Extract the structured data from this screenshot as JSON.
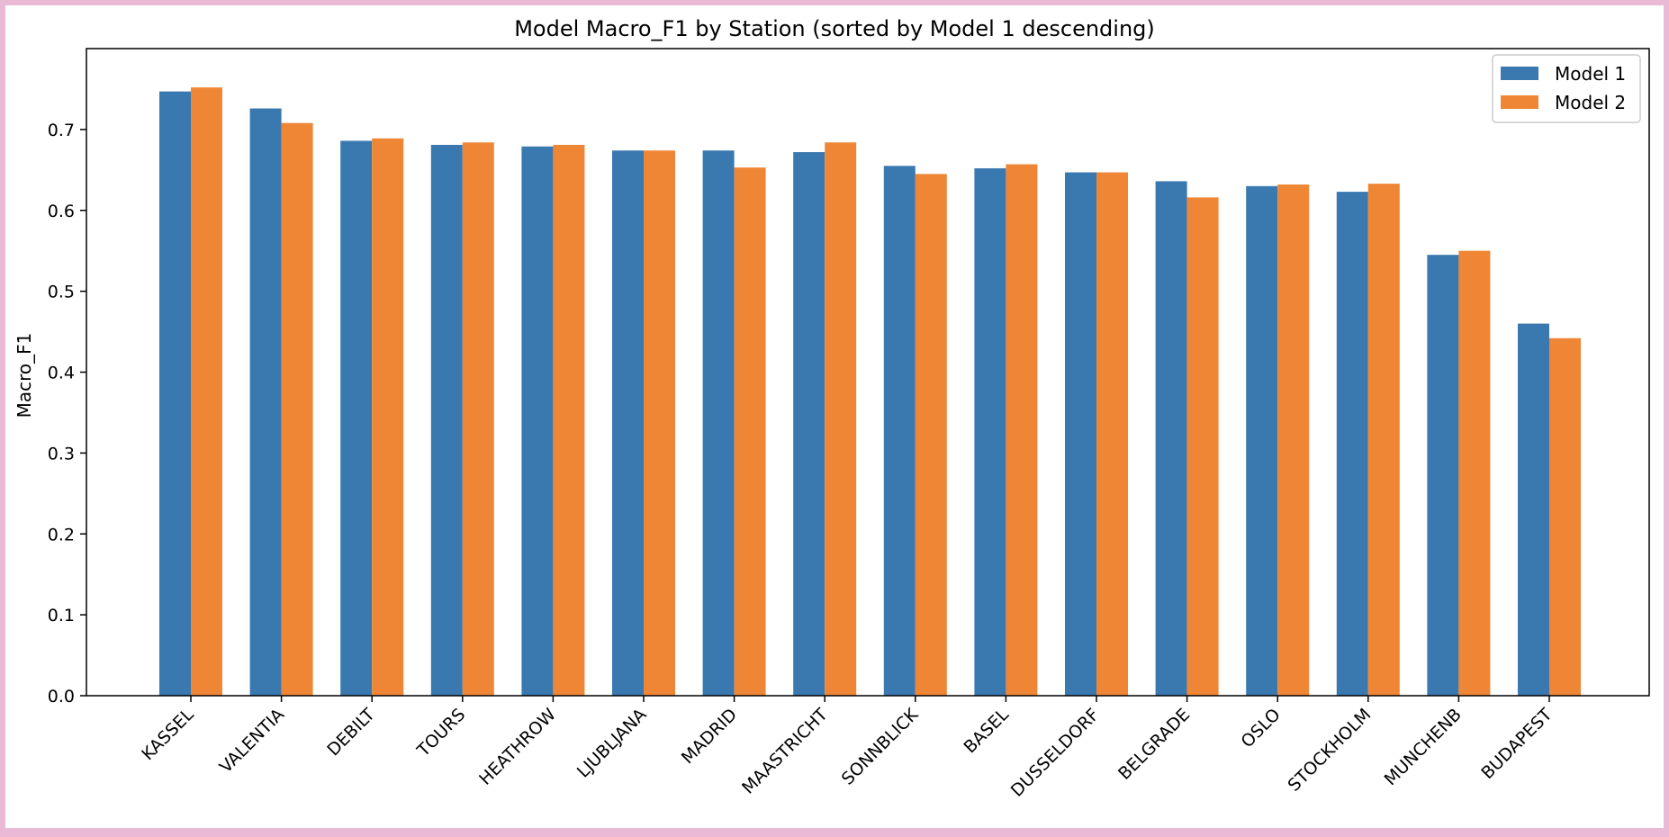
{
  "chart_data": {
    "type": "bar",
    "title": "Model Macro_F1 by Station (sorted by Model 1 descending)",
    "xlabel": "",
    "ylabel": "Macro_F1",
    "ylim": [
      0,
      0.8
    ],
    "yticks": [
      "0.0",
      "0.1",
      "0.2",
      "0.3",
      "0.4",
      "0.5",
      "0.6",
      "0.7"
    ],
    "grid": false,
    "legend_position": "top-right",
    "categories": [
      "KASSEL",
      "VALENTIA",
      "DEBILT",
      "TOURS",
      "HEATHROW",
      "LJUBLJANA",
      "MADRID",
      "MAASTRICHT",
      "SONNBLICK",
      "BASEL",
      "DUSSELDORF",
      "BELGRADE",
      "OSLO",
      "STOCKHOLM",
      "MUNCHENB",
      "BUDAPEST"
    ],
    "series": [
      {
        "name": "Model 1",
        "color": "#3a78b0",
        "values": [
          0.747,
          0.726,
          0.686,
          0.681,
          0.679,
          0.674,
          0.674,
          0.672,
          0.655,
          0.652,
          0.647,
          0.636,
          0.63,
          0.623,
          0.545,
          0.46
        ]
      },
      {
        "name": "Model 2",
        "color": "#ef8636",
        "values": [
          0.752,
          0.708,
          0.689,
          0.684,
          0.681,
          0.674,
          0.653,
          0.684,
          0.645,
          0.657,
          0.647,
          0.616,
          0.632,
          0.633,
          0.55,
          0.442
        ]
      }
    ]
  }
}
